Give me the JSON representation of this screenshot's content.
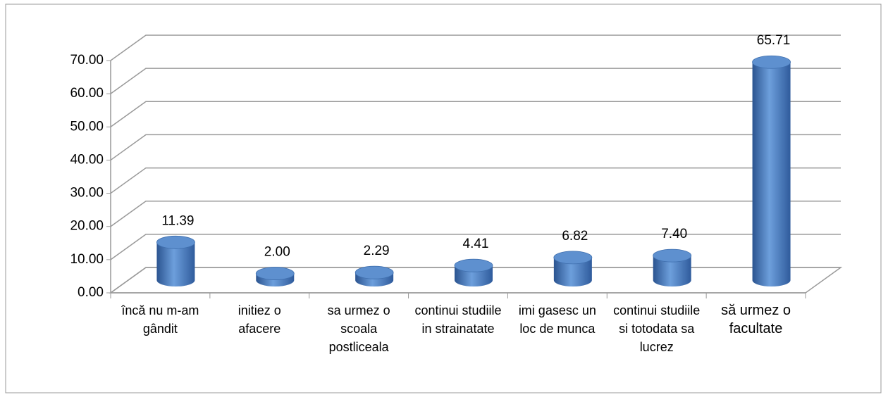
{
  "chart_data": {
    "type": "bar3d",
    "categories": [
      "încă nu m-am gândit",
      "initiez o afacere",
      "sa urmez o scoala postliceala",
      "continui studiile in strainatate",
      "imi gasesc un loc de munca",
      "continui studiile si totodata sa lucrez",
      "să urmez o facultate"
    ],
    "values": [
      11.39,
      2.0,
      2.29,
      4.41,
      6.82,
      7.4,
      65.71
    ],
    "value_labels": [
      "11.39",
      "2.00",
      "2.29",
      "4.41",
      "6.82",
      "7.40",
      "65.71"
    ],
    "color": "#4f81bd",
    "ylim": [
      0,
      70
    ],
    "yticks": [
      {
        "value": 0,
        "label": "0.00"
      },
      {
        "value": 10,
        "label": "10.00"
      },
      {
        "value": 20,
        "label": "20.00"
      },
      {
        "value": 30,
        "label": "30.00"
      },
      {
        "value": 40,
        "label": "40.00"
      },
      {
        "value": 50,
        "label": "50.00"
      },
      {
        "value": 60,
        "label": "60.00"
      },
      {
        "value": 70,
        "label": "70.00"
      }
    ],
    "grid": true
  }
}
